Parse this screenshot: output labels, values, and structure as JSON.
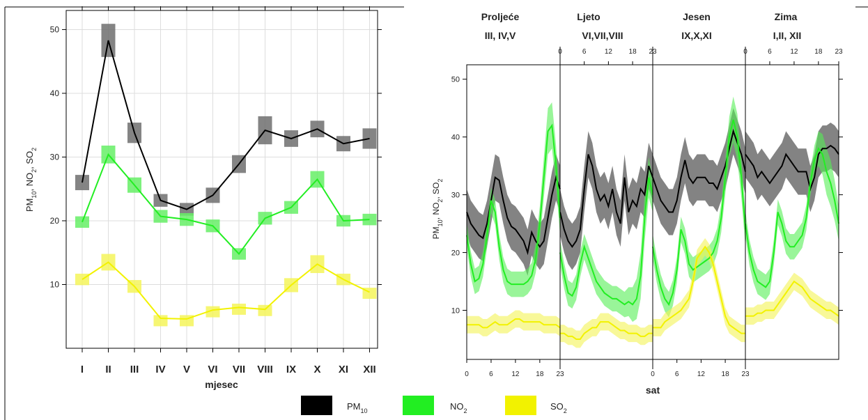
{
  "colors": {
    "pm10": "#000000",
    "no2": "#22ee22",
    "so2": "#f2f200",
    "pm10_band": "#555555",
    "no2_band": "#55ee55",
    "so2_band": "#f2f230"
  },
  "legend": {
    "items": [
      {
        "key": "pm10",
        "base": "PM",
        "sub": "10"
      },
      {
        "key": "no2",
        "base": "NO",
        "sub": "2"
      },
      {
        "key": "so2",
        "base": "SO",
        "sub": "2"
      }
    ]
  },
  "chart_data": [
    {
      "type": "line",
      "xlabel": "mjesec",
      "ylabel": {
        "parts": [
          "PM",
          "10",
          ", NO",
          "2",
          ", SO",
          "2"
        ]
      },
      "ylim": [
        0,
        53
      ],
      "yticks": [
        10,
        20,
        30,
        40,
        50
      ],
      "grid": true,
      "categories": [
        "I",
        "II",
        "III",
        "IV",
        "V",
        "VI",
        "VII",
        "VIII",
        "IX",
        "X",
        "XI",
        "XII"
      ],
      "series": [
        {
          "key": "pm10",
          "values": [
            26.0,
            48.3,
            33.8,
            23.2,
            21.8,
            24.0,
            28.9,
            34.2,
            32.9,
            34.4,
            32.1,
            32.9
          ],
          "errors": [
            1.2,
            2.6,
            1.6,
            1.0,
            1.0,
            1.2,
            1.4,
            2.2,
            1.3,
            1.3,
            1.2,
            1.6
          ]
        },
        {
          "key": "no2",
          "values": [
            19.8,
            30.4,
            25.6,
            20.7,
            20.2,
            19.2,
            14.8,
            20.4,
            22.1,
            26.5,
            20.0,
            20.2
          ],
          "errors": [
            0.9,
            1.4,
            1.2,
            1.0,
            1.0,
            1.0,
            0.9,
            1.0,
            1.0,
            1.3,
            0.9,
            0.9
          ]
        },
        {
          "key": "so2",
          "values": [
            10.8,
            13.5,
            9.7,
            4.7,
            4.6,
            6.0,
            6.4,
            6.1,
            9.9,
            13.2,
            10.8,
            8.8
          ],
          "errors": [
            0.9,
            1.3,
            1.0,
            0.5,
            0.6,
            0.6,
            0.6,
            0.7,
            1.1,
            1.4,
            0.9,
            0.7
          ]
        }
      ]
    },
    {
      "type": "area",
      "xlabel": "sat",
      "ylabel": {
        "parts": [
          "PM",
          "10",
          ", NO",
          "2",
          ", SO",
          "2"
        ]
      },
      "ylim": [
        1.5,
        52.5
      ],
      "yticks": [
        10,
        20,
        30,
        40,
        50
      ],
      "grid": false,
      "panels": [
        {
          "name": "Proljeće",
          "months": "III, IV,V"
        },
        {
          "name": "Ljeto",
          "months": "VI,VII,VIII"
        },
        {
          "name": "Jesen",
          "months": "IX,X,XI"
        },
        {
          "name": "Zima",
          "months": "I,II, XII"
        }
      ],
      "x_ticks": [
        "0",
        "6",
        "12",
        "18",
        "23"
      ],
      "hours": [
        0,
        1,
        2,
        3,
        4,
        5,
        6,
        7,
        8,
        9,
        10,
        11,
        12,
        13,
        14,
        15,
        16,
        17,
        18,
        19,
        20,
        21,
        22,
        23
      ],
      "series": [
        {
          "key": "pm10",
          "values": [
            [
              27.0,
              25.0,
              24.0,
              23.0,
              22.5,
              25.0,
              29.0,
              33.0,
              32.5,
              29.0,
              26.0,
              24.5,
              24.0,
              23.0,
              22.0,
              20.0,
              23.5,
              22.0,
              21.0,
              22.0,
              26.0,
              30.0,
              33.0,
              31.0
            ],
            [
              27.0,
              24.0,
              22.0,
              21.0,
              22.0,
              24.0,
              31.0,
              37.0,
              35.0,
              31.0,
              29.0,
              30.0,
              28.0,
              31.0,
              27.0,
              25.0,
              33.0,
              27.0,
              29.0,
              28.0,
              31.0,
              30.0,
              35.0,
              33.0
            ],
            [
              33.0,
              31.0,
              29.0,
              28.0,
              27.0,
              27.0,
              29.0,
              33.0,
              36.0,
              33.0,
              32.0,
              33.0,
              33.0,
              33.0,
              32.0,
              32.0,
              31.0,
              33.0,
              35.0,
              38.0,
              41.0,
              39.0,
              37.0,
              34.0
            ],
            [
              37.0,
              36.0,
              35.0,
              33.0,
              34.0,
              33.0,
              32.0,
              33.0,
              34.0,
              35.0,
              37.0,
              36.0,
              35.0,
              34.0,
              34.0,
              34.0,
              31.0,
              33.0,
              37.0,
              38.0,
              38.0,
              38.5,
              38.0,
              37.0
            ]
          ],
          "band": [
            4,
            4,
            4,
            4,
            4,
            4,
            4,
            4,
            4,
            4,
            4,
            4,
            4,
            4,
            4,
            4,
            4,
            4,
            4,
            4,
            4,
            4,
            4,
            4
          ]
        },
        {
          "key": "no2",
          "values": [
            [
              23.0,
              18.0,
              15.0,
              15.5,
              18.0,
              23.0,
              29.0,
              27.0,
              21.0,
              17.0,
              15.0,
              14.5,
              14.5,
              14.5,
              14.5,
              15.0,
              16.0,
              19.0,
              25.0,
              33.0,
              41.0,
              42.0,
              35.0,
              26.0
            ],
            [
              20.0,
              16.0,
              13.0,
              12.5,
              14.0,
              18.0,
              21.0,
              19.0,
              17.0,
              15.0,
              14.0,
              13.0,
              12.5,
              12.0,
              12.0,
              11.5,
              11.0,
              11.5,
              11.0,
              12.0,
              16.0,
              26.0,
              33.0,
              30.0
            ],
            [
              21.0,
              17.0,
              14.0,
              12.0,
              11.0,
              13.0,
              17.0,
              24.0,
              22.0,
              18.0,
              17.0,
              17.5,
              18.0,
              18.5,
              19.0,
              20.0,
              22.0,
              26.0,
              33.0,
              40.0,
              43.0,
              40.0,
              33.0,
              24.0
            ],
            [
              25.0,
              20.0,
              17.0,
              15.0,
              14.5,
              14.0,
              15.0,
              20.0,
              27.0,
              25.0,
              22.0,
              21.0,
              21.0,
              22.0,
              23.0,
              26.0,
              32.0,
              36.0,
              38.0,
              37.0,
              34.0,
              32.0,
              29.0,
              25.0
            ]
          ],
          "band": [
            2.2,
            2.2,
            2.2,
            2.2,
            2.2,
            2.2,
            2.2,
            2.2,
            2.2,
            2.2,
            2.2,
            2.2,
            2.2,
            2.2,
            2.2,
            2.2,
            2.2,
            2.5,
            3.0,
            3.5,
            4.0,
            4.0,
            3.5,
            3.0
          ]
        },
        {
          "key": "so2",
          "values": [
            [
              7.5,
              7.5,
              7.5,
              7.5,
              7.0,
              7.0,
              7.5,
              8.0,
              7.5,
              7.5,
              7.5,
              8.0,
              8.5,
              8.5,
              8.0,
              8.0,
              8.0,
              8.0,
              8.0,
              7.5,
              7.5,
              7.5,
              7.5,
              7.0
            ],
            [
              6.0,
              6.0,
              5.5,
              5.5,
              5.0,
              5.0,
              6.0,
              6.5,
              7.0,
              7.0,
              8.0,
              8.0,
              8.0,
              7.5,
              7.0,
              6.5,
              6.5,
              6.0,
              6.0,
              6.0,
              5.5,
              5.5,
              6.0,
              6.0
            ],
            [
              7.0,
              7.0,
              7.0,
              8.0,
              8.5,
              9.0,
              9.5,
              10.0,
              11.0,
              12.0,
              15.0,
              19.0,
              20.0,
              21.0,
              20.0,
              18.0,
              15.0,
              12.0,
              9.0,
              7.5,
              7.0,
              6.5,
              6.0,
              6.0
            ],
            [
              9.0,
              9.0,
              9.0,
              9.5,
              9.5,
              10.0,
              10.0,
              10.0,
              11.0,
              12.0,
              13.0,
              14.0,
              15.0,
              14.5,
              14.0,
              13.0,
              12.0,
              11.5,
              11.0,
              10.5,
              10.0,
              10.0,
              9.5,
              9.0
            ]
          ],
          "band": [
            1.5,
            1.5,
            1.5,
            1.5,
            1.5,
            1.5,
            1.5,
            1.5,
            1.5,
            1.5,
            1.5,
            1.5,
            1.5,
            1.5,
            1.5,
            1.5,
            1.5,
            1.5,
            1.5,
            1.5,
            1.5,
            1.5,
            1.5,
            1.5
          ]
        }
      ]
    }
  ]
}
